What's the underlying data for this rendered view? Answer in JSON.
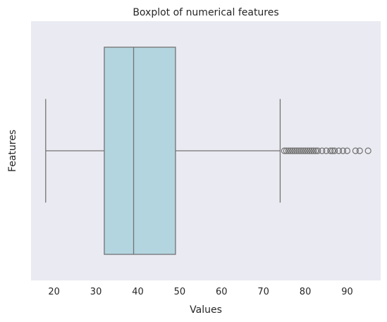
{
  "chart_data": {
    "type": "boxplot",
    "title": "Boxplot of numerical features",
    "xlabel": "Values",
    "ylabel": "Features",
    "xlim": [
      14.5,
      98
    ],
    "xticks": [
      20,
      30,
      40,
      50,
      60,
      70,
      80,
      90
    ],
    "grid": false,
    "box": {
      "whisker_low": 18,
      "q1": 32,
      "median": 39,
      "q3": 49,
      "whisker_high": 74,
      "outliers": [
        75,
        75.5,
        76,
        76.5,
        77,
        77.5,
        78,
        78.5,
        79,
        79.5,
        80,
        80.5,
        81,
        81.5,
        82,
        82.5,
        83,
        84,
        85,
        86,
        86.5,
        87,
        88,
        89,
        90,
        92,
        93,
        95
      ]
    },
    "colors": {
      "plot_background": "#eaeaf2",
      "box_fill": "#b3d5e0",
      "line": "#737373",
      "text": "#262626"
    }
  }
}
